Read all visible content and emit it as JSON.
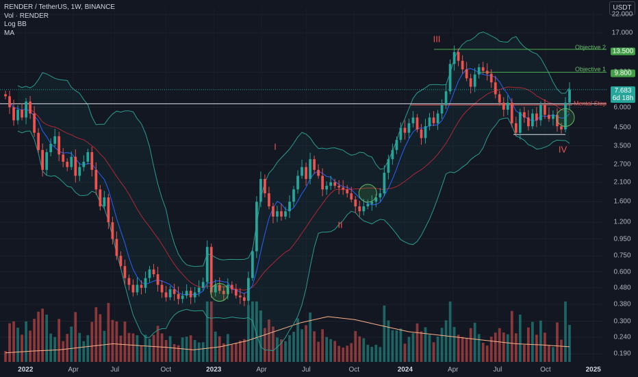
{
  "legend": {
    "symbol": "RENDER / TetherUS, 1W, BINANCE",
    "line2": "Vol · RENDER",
    "line3": "Log BB",
    "line4": "MA"
  },
  "currency": "USDT",
  "colors": {
    "up": "#26a69a",
    "down": "#ef5350",
    "bb_band": "#2a9d8f",
    "ma_fast": "#2962ff",
    "ma_slow": "#b22833",
    "vol_ma": "#ffb38a",
    "objective": "#4caf50",
    "stop": "#ef5350",
    "price_tag": "#26a69a"
  },
  "annotations": {
    "objective2_label": "Objective 2",
    "objective2_price": "13.500",
    "objective1_label": "Objective 1",
    "objective1_price": "9.800",
    "stop_label": "Mental Stop",
    "current_price": "7.683",
    "countdown": "6d 18h",
    "waves": [
      "I",
      "II",
      "III",
      "IV"
    ]
  },
  "chart_data": {
    "type": "candlestick",
    "scale": "log",
    "ylim": [
      0.17,
      24
    ],
    "y_ticks": [
      "22.000",
      "17.000",
      "9.800",
      "6.000",
      "4.500",
      "3.500",
      "2.700",
      "2.100",
      "1.600",
      "1.200",
      "0.950",
      "0.750",
      "0.600",
      "0.480",
      "0.380",
      "0.300",
      "0.240",
      "0.190"
    ],
    "x_ticks": [
      "2022",
      "Apr",
      "Jul",
      "Oct",
      "2023",
      "Apr",
      "Jul",
      "Oct",
      "2024",
      "Apr",
      "Jul",
      "Oct",
      "2025"
    ],
    "levels": {
      "objective_2": 13.5,
      "objective_1": 9.8,
      "mental_stop": 6.2,
      "resistance": 6.3,
      "support": 4.1
    },
    "last_price": 7.683,
    "closes": [
      7.0,
      6.0,
      5.0,
      5.8,
      5.2,
      6.5,
      5.5,
      4.2,
      3.3,
      2.5,
      3.2,
      3.6,
      4.0,
      3.1,
      2.8,
      2.6,
      3.0,
      2.3,
      2.6,
      2.8,
      3.2,
      2.5,
      1.9,
      1.5,
      1.7,
      1.2,
      0.95,
      0.75,
      0.65,
      0.55,
      0.5,
      0.45,
      0.5,
      0.48,
      0.55,
      0.62,
      0.58,
      0.5,
      0.45,
      0.42,
      0.47,
      0.44,
      0.41,
      0.43,
      0.46,
      0.42,
      0.45,
      0.48,
      0.52,
      0.85,
      0.45,
      0.5,
      0.46,
      0.44,
      0.5,
      0.47,
      0.43,
      0.42,
      0.4,
      0.55,
      0.8,
      1.6,
      2.2,
      1.8,
      1.5,
      1.3,
      1.4,
      1.3,
      1.4,
      1.6,
      1.9,
      2.3,
      2.6,
      2.2,
      2.9,
      2.5,
      2.3,
      1.9,
      2.0,
      2.1,
      2.0,
      1.95,
      1.9,
      1.8,
      1.65,
      1.5,
      1.4,
      1.5,
      1.55,
      1.6,
      1.7,
      1.8,
      2.4,
      2.9,
      3.3,
      3.8,
      4.5,
      4.2,
      4.8,
      5.2,
      4.4,
      3.9,
      4.6,
      5.2,
      4.8,
      5.5,
      6.2,
      7.5,
      11.0,
      13.0,
      11.5,
      10.2,
      9.0,
      8.0,
      9.5,
      10.5,
      10.0,
      9.6,
      8.5,
      7.2,
      6.4,
      5.8,
      6.4,
      4.8,
      4.2,
      5.6,
      5.2,
      4.6,
      5.5,
      5.0,
      6.2,
      5.4,
      5.1,
      5.4,
      4.6,
      4.4,
      6.4,
      7.683
    ],
    "volume_ma": [
      0.15,
      0.18,
      0.2,
      0.25,
      0.3,
      0.27,
      0.24,
      0.2,
      0.25,
      0.35,
      0.5,
      0.65,
      0.75,
      0.7,
      0.6,
      0.5,
      0.45,
      0.4,
      0.35,
      0.3,
      0.28,
      0.25
    ]
  }
}
